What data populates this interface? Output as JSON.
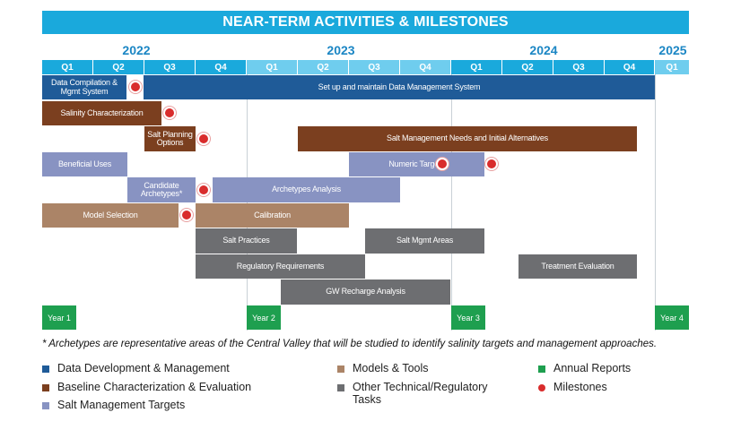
{
  "title": "NEAR-TERM ACTIVITIES & MILESTONES",
  "years": [
    "2022",
    "2023",
    "2024",
    "2025"
  ],
  "quarters": [
    "Q1",
    "Q2",
    "Q3",
    "Q4",
    "Q1",
    "Q2",
    "Q3",
    "Q4",
    "Q1",
    "Q2",
    "Q3",
    "Q4",
    "Q1"
  ],
  "colors": {
    "data_dev": "#1f5b98",
    "baseline": "#7b3f1f",
    "salt_targets": "#8893c2",
    "models": "#ab8467",
    "other": "#6d6e71",
    "annual": "#1e9f4f",
    "milestone": "#d92c2c",
    "header_dark": "#1aa9dc",
    "header_light": "#6fcdee"
  },
  "tasks": {
    "data_compilation": "Data Compilation & Mgmt System",
    "data_mgmt_system": "Set up and maintain Data Management System",
    "salinity_char": "Salinity Characterization",
    "salt_planning": "Salt Planning Options",
    "salt_mgmt_needs": "Salt Management Needs and Initial Alternatives",
    "beneficial_uses": "Beneficial Uses",
    "numeric_targets": "Numeric Targets",
    "candidate_archetypes": "Candidate Archetypes*",
    "archetypes_analysis": "Archetypes Analysis",
    "model_selection": "Model Selection",
    "calibration": "Calibration",
    "salt_practices": "Salt Practices",
    "salt_mgmt_areas": "Salt Mgmt Areas",
    "regulatory_requirements": "Regulatory Requirements",
    "treatment_evaluation": "Treatment Evaluation",
    "gw_recharge": "GW Recharge Analysis"
  },
  "annual_reports": [
    "Year 1",
    "Year 2",
    "Year 3",
    "Year 4"
  ],
  "footnote": "* Archetypes are representative areas of the Central Valley that will be studied to identify salinity targets and management approaches.",
  "legend": {
    "data_dev": "Data Development & Management",
    "baseline": "Baseline Characterization & Evaluation",
    "salt_targets": "Salt Management Targets",
    "models": "Models & Tools",
    "other": "Other Technical/Regulatory Tasks",
    "annual": "Annual Reports",
    "milestones": "Milestones"
  }
}
